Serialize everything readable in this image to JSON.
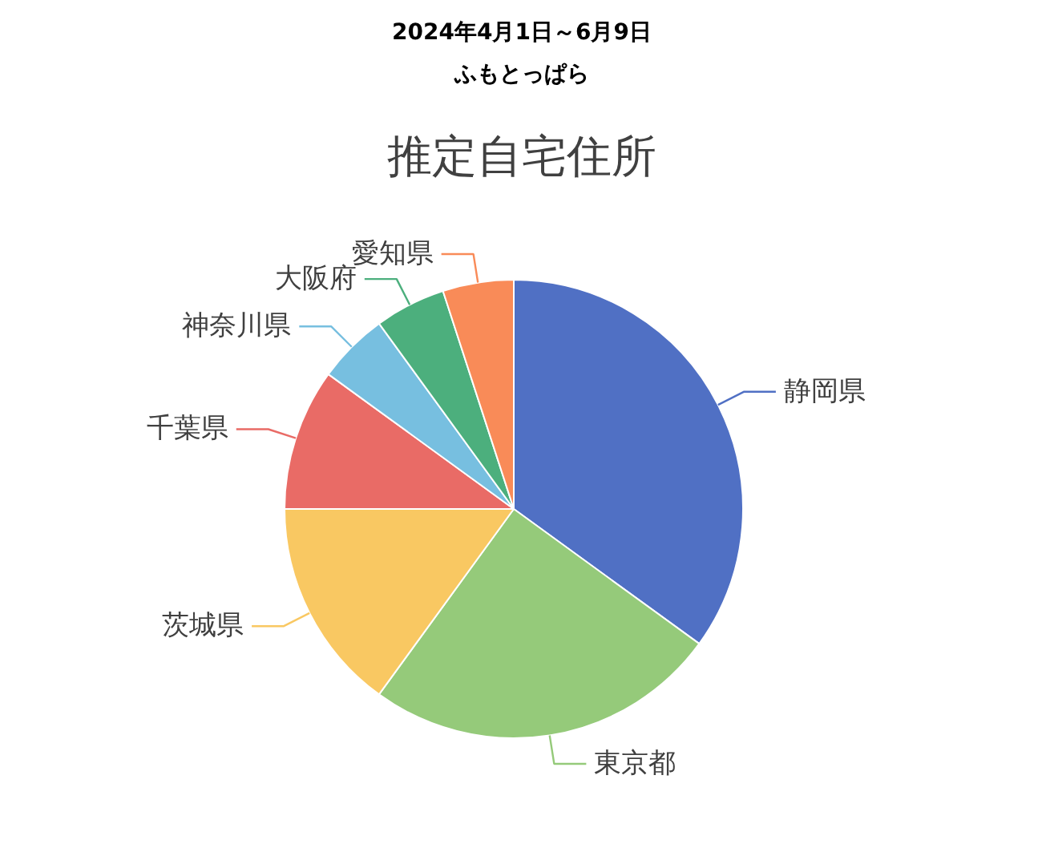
{
  "chart_data": {
    "type": "pie",
    "title": "推定自宅住所",
    "subtitle": "2024年4月1日～6月9日",
    "annotations": [
      "ふもとっぱら"
    ],
    "categories": [
      "静岡県",
      "東京都",
      "茨城県",
      "千葉県",
      "神奈川県",
      "大阪府",
      "愛知県"
    ],
    "values": [
      35,
      25,
      15,
      10,
      5,
      5,
      5
    ],
    "colors": [
      "#5070c4",
      "#95ca7a",
      "#f9c862",
      "#e96b66",
      "#77bfe0",
      "#4caf7d",
      "#f98b58"
    ]
  }
}
